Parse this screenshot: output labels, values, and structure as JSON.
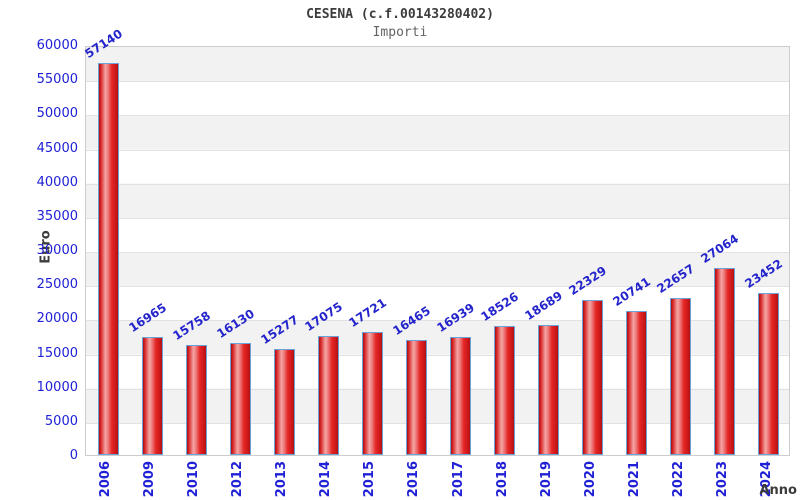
{
  "chart_data": {
    "type": "bar",
    "title": "CESENA (c.f.00143280402)",
    "subtitle": "Importi",
    "xlabel": "Anno",
    "ylabel": "Euro",
    "categories": [
      "2006",
      "2009",
      "2010",
      "2012",
      "2013",
      "2014",
      "2015",
      "2016",
      "2017",
      "2018",
      "2019",
      "2020",
      "2021",
      "2022",
      "2023",
      "2024"
    ],
    "values": [
      57140,
      16965,
      15758,
      16130,
      15277,
      17075,
      17721,
      16465,
      16939,
      18526,
      18689,
      22329,
      20741,
      22657,
      27064,
      23452
    ],
    "ylim": [
      0,
      60000
    ],
    "ytick_step": 5000,
    "grid": true,
    "legend": "none",
    "colors": {
      "bar_fill": "#e42525",
      "bar_highlight": "#f4a6a6",
      "bar_border": "#6aa2dc",
      "tick_label": "#2020d6",
      "value_label": "#2424cc",
      "title_text": "#3c3c3c",
      "subtitle_text": "#646464",
      "band_a": "#f2f2f2",
      "band_b": "#ffffff",
      "grid_line": "#e2e2e2"
    }
  }
}
